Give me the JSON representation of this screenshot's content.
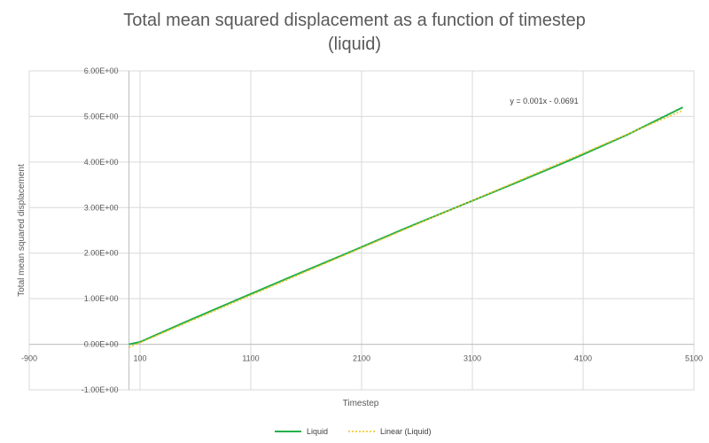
{
  "chart_data": {
    "type": "line",
    "title_line1": "Total mean squared displacement as a function of timestep",
    "title_line2": "(liquid)",
    "xlabel": "Timestep",
    "ylabel": "Total mean squared displacement",
    "xlim": [
      -900,
      5100
    ],
    "ylim": [
      -1.0,
      6.0
    ],
    "x_ticks": [
      -900,
      100,
      1100,
      2100,
      3100,
      4100,
      5100
    ],
    "x_tick_labels": [
      "-900",
      "100",
      "1100",
      "2100",
      "3100",
      "4100",
      "5100"
    ],
    "y_ticks": [
      -1,
      0,
      1,
      2,
      3,
      4,
      5,
      6
    ],
    "y_tick_labels": [
      "-1.00E+00",
      "0.00E+00",
      "1.00E+00",
      "2.00E+00",
      "3.00E+00",
      "4.00E+00",
      "5.00E+00",
      "6.00E+00"
    ],
    "grid": true,
    "series": [
      {
        "name": "Liquid",
        "color": "#22b04a",
        "style": "solid",
        "x": [
          0,
          100,
          500,
          1000,
          1500,
          2000,
          2500,
          3000,
          3500,
          4000,
          4500,
          5000
        ],
        "y": [
          0.0,
          0.05,
          0.48,
          1.0,
          1.52,
          2.03,
          2.55,
          3.05,
          3.55,
          4.06,
          4.6,
          5.2
        ]
      },
      {
        "name": "Linear (Liquid)",
        "color": "#f2c018",
        "style": "dotted",
        "x": [
          0,
          5000
        ],
        "y": [
          -0.0691,
          5.13
        ]
      }
    ],
    "trendline_equation": "y = 0.001x - 0.0691",
    "legend_position": "bottom"
  }
}
